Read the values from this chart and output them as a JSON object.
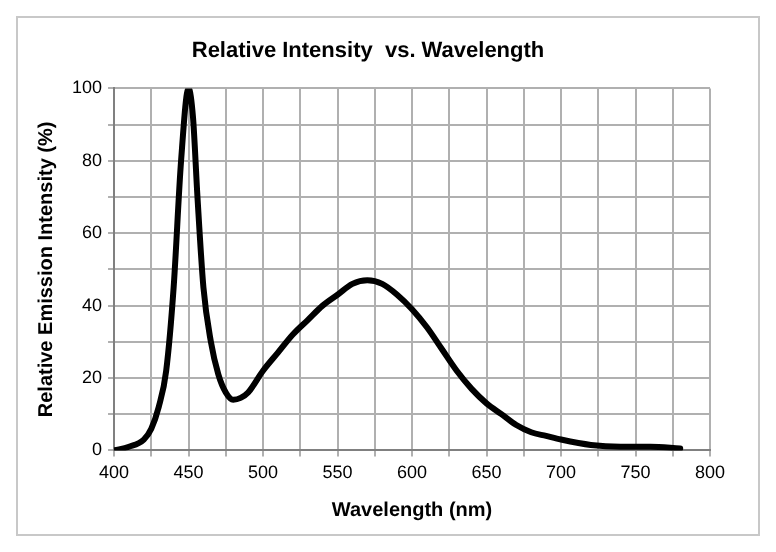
{
  "chart_data": {
    "type": "line",
    "title": "Relative Intensity  vs. Wavelength",
    "xlabel": "Wavelength (nm)",
    "ylabel": "Relative Emission Intensity (%)",
    "x": [
      400,
      410,
      420,
      425,
      430,
      435,
      440,
      445,
      450,
      453,
      456,
      460,
      465,
      470,
      475,
      480,
      485,
      490,
      500,
      510,
      520,
      530,
      540,
      550,
      560,
      570,
      580,
      590,
      600,
      610,
      620,
      630,
      640,
      650,
      660,
      670,
      680,
      690,
      700,
      720,
      740,
      760,
      780
    ],
    "series": [
      {
        "color": "#000000",
        "values": [
          0,
          1,
          3,
          6,
          12,
          22,
          45,
          80,
          100,
          92,
          70,
          45,
          30,
          21,
          16,
          14,
          14.5,
          16,
          22,
          27,
          32,
          36,
          40,
          43,
          46,
          47,
          46,
          43,
          39,
          34,
          28,
          22,
          17,
          13,
          10,
          7,
          5,
          4,
          3,
          1.5,
          1,
          1,
          0.5
        ]
      }
    ],
    "xlim": [
      400,
      800
    ],
    "ylim": [
      0,
      100
    ],
    "xticks": [
      400,
      {
        "value": 425,
        "label": null
      },
      450,
      {
        "value": 475,
        "label": null
      },
      500,
      {
        "value": 525,
        "label": null
      },
      550,
      {
        "value": 575,
        "label": null
      },
      600,
      {
        "value": 625,
        "label": null
      },
      650,
      {
        "value": 675,
        "label": null
      },
      700,
      {
        "value": 725,
        "label": null
      },
      750,
      {
        "value": 775,
        "label": null
      },
      800
    ],
    "yticks": [
      0,
      {
        "value": 10,
        "label": null
      },
      20,
      {
        "value": 30,
        "label": null
      },
      40,
      {
        "value": 50,
        "label": null
      },
      60,
      {
        "value": 70,
        "label": null
      },
      80,
      {
        "value": 90,
        "label": null
      },
      100
    ],
    "grid": true,
    "legend": false,
    "marker": "none",
    "line_style": "solid"
  }
}
